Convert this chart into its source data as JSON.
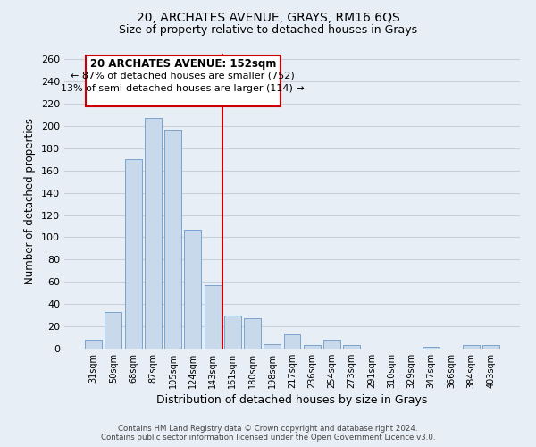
{
  "title": "20, ARCHATES AVENUE, GRAYS, RM16 6QS",
  "subtitle": "Size of property relative to detached houses in Grays",
  "xlabel": "Distribution of detached houses by size in Grays",
  "ylabel": "Number of detached properties",
  "categories": [
    "31sqm",
    "50sqm",
    "68sqm",
    "87sqm",
    "105sqm",
    "124sqm",
    "143sqm",
    "161sqm",
    "180sqm",
    "198sqm",
    "217sqm",
    "236sqm",
    "254sqm",
    "273sqm",
    "291sqm",
    "310sqm",
    "329sqm",
    "347sqm",
    "366sqm",
    "384sqm",
    "403sqm"
  ],
  "values": [
    8,
    33,
    170,
    207,
    197,
    107,
    57,
    30,
    27,
    4,
    13,
    3,
    8,
    3,
    0,
    0,
    0,
    2,
    0,
    3,
    3
  ],
  "bar_color": "#c8d9ec",
  "bar_edge_color": "#7ba3cc",
  "marker_color": "#cc0000",
  "annotation_title": "20 ARCHATES AVENUE: 152sqm",
  "annotation_line1": "← 87% of detached houses are smaller (752)",
  "annotation_line2": "13% of semi-detached houses are larger (114) →",
  "annotation_box_color": "#ffffff",
  "annotation_box_edge": "#cc0000",
  "ylim": [
    0,
    265
  ],
  "yticks": [
    0,
    20,
    40,
    60,
    80,
    100,
    120,
    140,
    160,
    180,
    200,
    220,
    240,
    260
  ],
  "footer_line1": "Contains HM Land Registry data © Crown copyright and database right 2024.",
  "footer_line2": "Contains public sector information licensed under the Open Government Licence v3.0.",
  "background_color": "#e8eef5",
  "grid_color": "#c8d0db",
  "title_fontsize": 10,
  "subtitle_fontsize": 9
}
